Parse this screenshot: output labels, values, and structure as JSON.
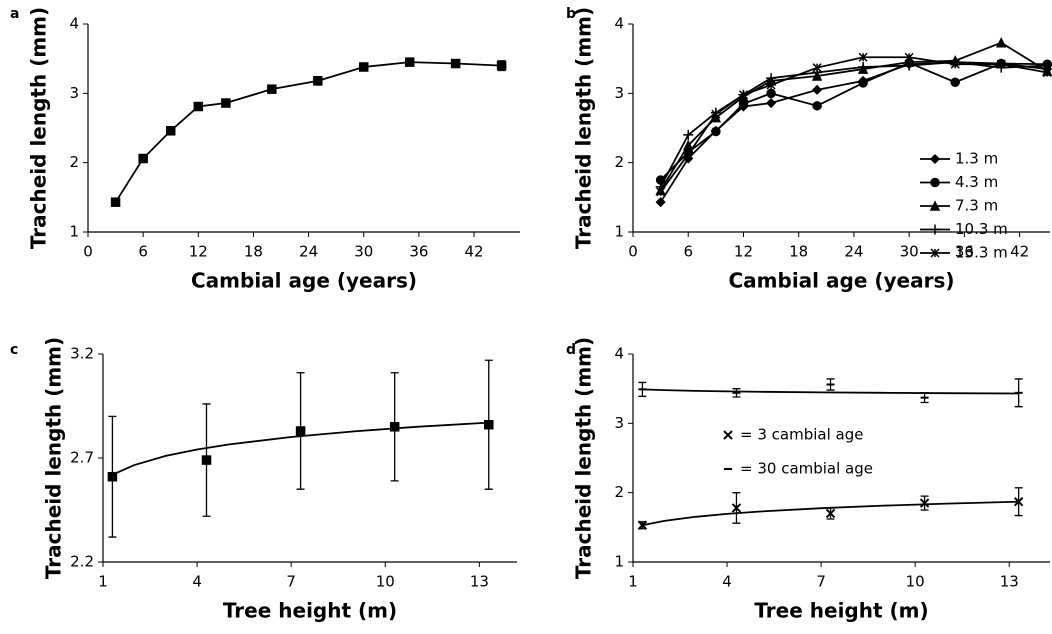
{
  "chart_data": [
    {
      "type": "line",
      "panel": "a",
      "x_label": "Cambial age (years)",
      "y_label": "Tracheid length (mm)",
      "x": [
        3,
        6,
        9,
        12,
        15,
        20,
        25,
        30,
        35,
        40,
        45
      ],
      "values": [
        1.43,
        2.06,
        2.46,
        2.81,
        2.86,
        3.06,
        3.18,
        3.38,
        3.45,
        3.43,
        3.4
      ],
      "errors": [
        0.03,
        0.03,
        0.03,
        0.04,
        0.05,
        0.03,
        0.06,
        0.03,
        0.03,
        0.03,
        0.07
      ],
      "marker": "square",
      "color": "#000000",
      "xlim": [
        0,
        47
      ],
      "xticks": [
        0,
        6,
        12,
        18,
        24,
        30,
        36,
        42
      ],
      "ylim": [
        1,
        4
      ],
      "yticks": [
        1,
        2,
        3,
        4
      ]
    },
    {
      "type": "line",
      "panel": "b",
      "x_label": "Cambial age (years)",
      "y_label": "Tracheid length (mm)",
      "x": [
        3,
        6,
        9,
        12,
        15,
        20,
        25,
        30,
        35,
        40,
        45
      ],
      "series": [
        {
          "name": "1.3 m",
          "marker": "diamond",
          "color": "#000000",
          "values": [
            1.43,
            2.06,
            2.46,
            2.81,
            2.86,
            3.05,
            3.18,
            3.42,
            3.45,
            3.43,
            3.35
          ]
        },
        {
          "name": "4.3 m",
          "marker": "circle",
          "color": "#000000",
          "values": [
            1.75,
            2.15,
            2.45,
            2.85,
            3.0,
            2.82,
            3.15,
            3.44,
            3.16,
            3.43,
            3.42
          ]
        },
        {
          "name": "7.3 m",
          "marker": "triangle",
          "color": "#000000",
          "values": [
            1.6,
            2.25,
            2.65,
            2.95,
            3.18,
            3.25,
            3.35,
            3.45,
            3.47,
            3.73,
            3.32
          ]
        },
        {
          "name": "10.3 m",
          "marker": "plus",
          "color": "#000000",
          "values": [
            1.65,
            2.4,
            2.72,
            2.98,
            3.22,
            3.3,
            3.38,
            3.4,
            3.45,
            3.37,
            3.4
          ]
        },
        {
          "name": "13.3 m",
          "marker": "asterisk",
          "color": "#000000",
          "values": [
            1.58,
            2.12,
            2.7,
            2.98,
            3.12,
            3.37,
            3.52,
            3.52,
            3.42,
            3.42,
            3.3
          ]
        }
      ],
      "xlim": [
        0,
        45.3
      ],
      "xticks": [
        0,
        6,
        12,
        18,
        24,
        30,
        36,
        42
      ],
      "ylim": [
        1,
        4
      ],
      "yticks": [
        1,
        2,
        3,
        4
      ]
    },
    {
      "type": "scatter",
      "panel": "c",
      "x_label": "Tree height (m)",
      "y_label": "Tracheid length (mm)",
      "x": [
        1.3,
        4.3,
        7.3,
        10.3,
        13.3
      ],
      "values": [
        2.61,
        2.69,
        2.83,
        2.85,
        2.86
      ],
      "errors": [
        0.29,
        0.27,
        0.28,
        0.26,
        0.31
      ],
      "marker": "square",
      "color": "#000000",
      "fit": {
        "x": [
          1.3,
          2,
          3,
          4,
          5,
          7,
          9,
          11,
          13.3
        ],
        "values": [
          2.62,
          2.666,
          2.71,
          2.741,
          2.765,
          2.801,
          2.828,
          2.85,
          2.87
        ]
      },
      "xlim": [
        1,
        14.2
      ],
      "xticks": [
        1,
        4,
        7,
        10,
        13
      ],
      "ylim": [
        2.2,
        3.2
      ],
      "yticks": [
        2.2,
        2.7,
        3.2
      ]
    },
    {
      "type": "scatter",
      "panel": "d",
      "x_label": "Tree height (m)",
      "y_label": "Tracheid length (mm)",
      "x": [
        1.3,
        4.3,
        7.3,
        10.3,
        13.3
      ],
      "series": [
        {
          "name": "= 3 cambial age",
          "marker": "x",
          "color": "#000000",
          "values": [
            1.53,
            1.78,
            1.7,
            1.85,
            1.87
          ],
          "errors": [
            0.05,
            0.22,
            0.08,
            0.1,
            0.2
          ],
          "fit": {
            "x": [
              1.3,
              2,
              3,
              4,
              5,
              7,
              9,
              11,
              13.3
            ],
            "values": [
              1.53,
              1.593,
              1.652,
              1.694,
              1.727,
              1.776,
              1.813,
              1.842,
              1.87
            ]
          }
        },
        {
          "name": "= 30 cambial age",
          "marker": "dash",
          "color": "#000000",
          "values": [
            3.49,
            3.44,
            3.56,
            3.37,
            3.44
          ],
          "errors": [
            0.1,
            0.06,
            0.08,
            0.07,
            0.2
          ],
          "fit": {
            "x": [
              1.3,
              2,
              3,
              4,
              5,
              7,
              9,
              11,
              13.3
            ],
            "values": [
              3.49,
              3.479,
              3.468,
              3.461,
              3.455,
              3.446,
              3.44,
              3.435,
              3.43
            ]
          }
        }
      ],
      "xlim": [
        1,
        14.3
      ],
      "xticks": [
        1,
        4,
        7,
        10,
        13
      ],
      "ylim": [
        1,
        4
      ],
      "yticks": [
        1,
        2,
        3,
        4
      ]
    }
  ]
}
